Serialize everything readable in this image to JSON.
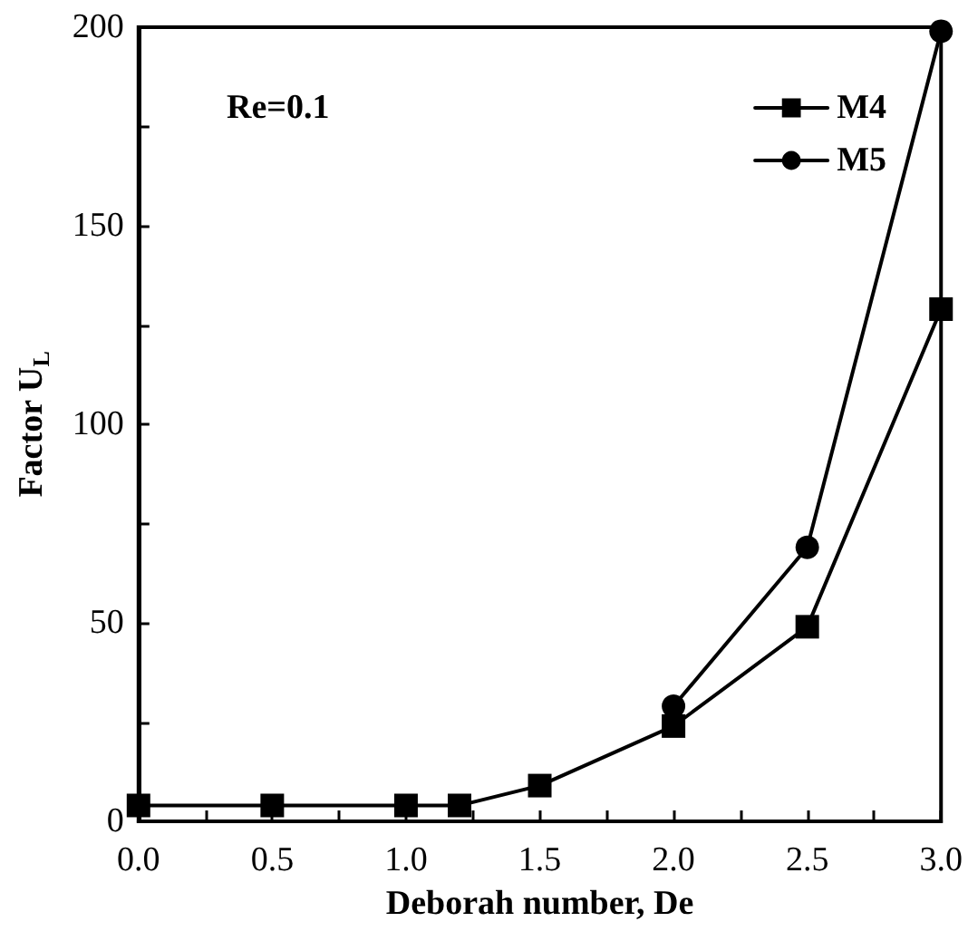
{
  "chart_data": {
    "type": "line",
    "xlabel": "Deborah number, De",
    "ylabel": "Factor U$_{L}$",
    "x": [
      0,
      0.5,
      1.0,
      1.2,
      1.5,
      2.0,
      2.5,
      3.0
    ],
    "series": [
      {
        "name": "M4",
        "color": "#000000",
        "marker": "square",
        "values": [
          4,
          4,
          4,
          4,
          9,
          24,
          49,
          129
        ]
      },
      {
        "name": "M5",
        "color": "#000000",
        "marker": "circle",
        "values": [
          null,
          null,
          null,
          null,
          null,
          29,
          69,
          199
        ]
      }
    ],
    "xlim": [
      0,
      3
    ],
    "xticks": [
      {
        "value": 0,
        "label": "0.0"
      },
      {
        "value": 0.25,
        "label": null
      },
      {
        "value": 0.5,
        "label": "0.5"
      },
      {
        "value": 0.75,
        "label": null
      },
      {
        "value": 1,
        "label": "1.0"
      },
      {
        "value": 1.25,
        "label": null
      },
      {
        "value": 1.5,
        "label": "1.5"
      },
      {
        "value": 1.75,
        "label": null
      },
      {
        "value": 2,
        "label": "2.0"
      },
      {
        "value": 2.25,
        "label": null
      },
      {
        "value": 2.5,
        "label": "2.5"
      },
      {
        "value": 2.75,
        "label": null
      },
      {
        "value": 3,
        "label": "3.0"
      }
    ],
    "ylim": [
      0,
      200
    ],
    "yticks": [
      0,
      {
        "value": 25,
        "label": null
      },
      50,
      {
        "value": 75,
        "label": null
      },
      100,
      {
        "value": 125,
        "label": null
      },
      150,
      {
        "value": 175,
        "label": null
      },
      200
    ],
    "annotations": [
      "Re=0.1"
    ],
    "legend": "top right",
    "grid": false,
    "line_style": "solid"
  }
}
